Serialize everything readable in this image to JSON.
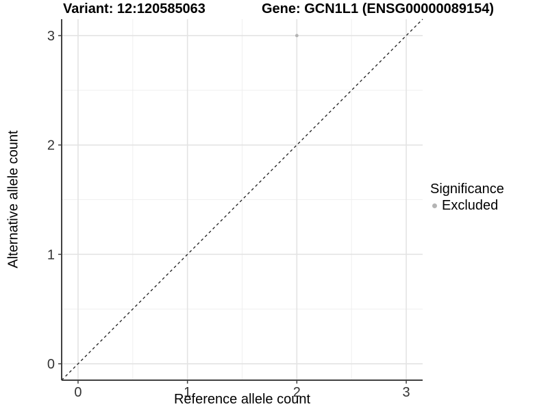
{
  "colors": {
    "background": "#ffffff",
    "grid_major": "#e3e3e3",
    "grid_minor": "#f0f0f0",
    "axis_line": "#404040",
    "tick_text": "#333333",
    "title_text": "#000000",
    "point": "#b4b4b4",
    "identity_line": "#1a1a1a"
  },
  "chart_data": {
    "type": "scatter",
    "title_left": "Variant: 12:120585063",
    "title_right": "Gene: GCN1L1 (ENSG00000089154)",
    "xlabel": "Reference allele count",
    "ylabel": "Alternative allele count",
    "xlim": [
      -0.15,
      3.15
    ],
    "ylim": [
      -0.15,
      3.15
    ],
    "xticks": [
      0,
      1,
      2,
      3
    ],
    "xtick_labels": [
      "0",
      "1",
      "2",
      "3"
    ],
    "yticks": [
      0,
      1,
      2,
      3
    ],
    "ytick_labels": [
      "0",
      "1",
      "2",
      "3"
    ],
    "xticks_minor": [
      0.5,
      1.5,
      2.5
    ],
    "yticks_minor": [
      0.5,
      1.5,
      2.5
    ],
    "grid": true,
    "series": [
      {
        "name": "Excluded",
        "color": "#b4b4b4",
        "points": [
          {
            "x": 2,
            "y": 3
          }
        ]
      }
    ],
    "reference_line": {
      "kind": "identity y=x",
      "style": "dashed",
      "color": "#1a1a1a",
      "from": [
        -0.15,
        -0.15
      ],
      "to": [
        3.15,
        3.15
      ]
    },
    "legend": {
      "title": "Significance",
      "position": "right",
      "entries": [
        {
          "label": "Excluded",
          "color": "#b4b4b4"
        }
      ]
    }
  }
}
